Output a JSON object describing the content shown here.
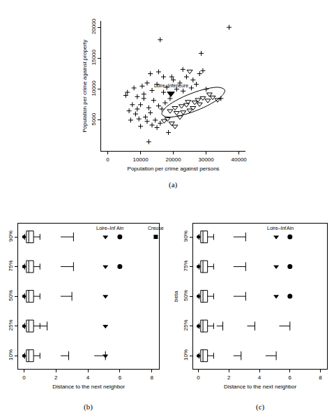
{
  "chart_data": [
    {
      "type": "scatter",
      "caption": "(a)",
      "x_label": "Population per crime against persons",
      "y_label": "Population per crime against property",
      "xlim": [
        -2000,
        42000
      ],
      "xticks": [
        0,
        10000,
        20000,
        30000,
        40000
      ],
      "ylim": [
        0,
        21000
      ],
      "yticks": [
        5000,
        10000,
        15000,
        20000
      ],
      "series": [
        {
          "type": "scatter",
          "marker": "cross",
          "color": "#000000",
          "x": [
            37000,
            16000,
            28500,
            22900,
            15500,
            28000,
            6000,
            5500,
            8000,
            10500,
            12000,
            13500,
            15000,
            17000,
            18000,
            19500,
            21000,
            23000,
            25500,
            27000,
            30000,
            34500,
            9000,
            8500,
            10000,
            11000,
            12500,
            13000,
            14000,
            15500,
            16500,
            17500,
            7000,
            6500,
            9500,
            11500,
            12000,
            13500,
            14500,
            15000,
            16000,
            18500,
            12500,
            10000,
            7500,
            19000,
            20000,
            22000,
            24000,
            26000,
            29000,
            11000,
            13000,
            9000,
            17000
          ],
          "y": [
            20000,
            18000,
            15800,
            13200,
            12800,
            12500,
            9500,
            9000,
            10200,
            10500,
            11000,
            9800,
            10800,
            9500,
            10300,
            12000,
            10000,
            9700,
            10200,
            10800,
            10000,
            8500,
            6800,
            6000,
            7500,
            8500,
            7000,
            6200,
            8200,
            7300,
            6800,
            7800,
            5000,
            6500,
            5200,
            5500,
            4800,
            4200,
            5000,
            3800,
            4500,
            3000,
            1500,
            4000,
            7500,
            8500,
            11500,
            11000,
            12000,
            11500,
            13000,
            9200,
            12500,
            8800,
            12000
          ]
        },
        {
          "type": "scatter",
          "marker": "triangle-down-open",
          "color": "#000000",
          "x": [
            25000,
            17200,
            19500,
            20500,
            22500,
            24000,
            21000,
            23000,
            24500,
            26500,
            27500,
            29000,
            30500,
            32000,
            33500,
            28000,
            26000,
            25000,
            22000,
            18200,
            20500,
            31000,
            19000
          ],
          "y": [
            12900,
            4900,
            4500,
            7000,
            7300,
            7500,
            6200,
            6300,
            8000,
            7900,
            8300,
            8600,
            8200,
            8700,
            8300,
            7600,
            7000,
            6600,
            5500,
            5200,
            4000,
            9200,
            6500
          ]
        },
        {
          "type": "line",
          "line_style": "solid",
          "color": "#000000",
          "x": [
            35700,
            34064,
            30294,
            25400,
            20694,
            17436,
            16500,
            18136,
            21906,
            26800,
            31506,
            34764,
            35700
          ],
          "y": [
            9850,
            10289,
            10087,
            9300,
            8137,
            6911,
            5950,
            5511,
            5713,
            6500,
            7663,
            8889,
            9850
          ]
        },
        {
          "type": "scatter",
          "marker": "triangle-down",
          "color": "#000000",
          "name": "Loire–Inferieure",
          "x": [
            19250
          ],
          "y": [
            9300
          ]
        }
      ]
    },
    {
      "type": "box",
      "caption": "(b)",
      "orientation": "horizontal",
      "x_label": "Distance to the next neighbor",
      "categories": [
        "10%",
        "25%",
        "50%",
        "75%",
        "90%"
      ],
      "xlim": [
        -0.35,
        8.45
      ],
      "xticks": [
        0,
        2,
        4,
        6,
        8
      ],
      "lower_whisker": [
        0.05,
        0.05,
        0.05,
        0.05,
        0.05
      ],
      "q1": [
        0.15,
        0.15,
        0.15,
        0.15,
        0.15
      ],
      "median": [
        0.3,
        0.3,
        0.3,
        0.3,
        0.3
      ],
      "q3": [
        0.6,
        0.6,
        0.6,
        0.6,
        0.6
      ],
      "upper_whisker": [
        1.0,
        1.0,
        1.0,
        1.0,
        1.0
      ],
      "min_point": [
        0,
        0,
        0,
        0,
        0
      ],
      "intervals": [
        [
          [
            2.3,
            2.8
          ],
          [
            4.4,
            5.1
          ]
        ],
        [
          [
            1.0,
            1.45
          ]
        ],
        [
          [
            2.3,
            3.0
          ]
        ],
        [
          [
            2.3,
            3.1
          ]
        ],
        [
          [
            2.3,
            3.1
          ]
        ]
      ],
      "points": [
        {
          "name": "Loire–Inf",
          "marker": "triangle-down",
          "values": [
            5.1,
            5.1,
            5.1,
            5.1,
            5.1
          ]
        },
        {
          "name": "Ain",
          "marker": "circle",
          "values": [
            null,
            null,
            null,
            6.0,
            6.0
          ]
        },
        {
          "name": "Creuse",
          "marker": "square",
          "values": [
            null,
            null,
            null,
            null,
            8.25
          ]
        }
      ]
    },
    {
      "type": "box",
      "caption": "(c)",
      "orientation": "horizontal",
      "x_label": "Distance to the next neighbor",
      "y_label": "beta",
      "categories": [
        "10%",
        "25%",
        "50%",
        "75%",
        "90%"
      ],
      "xlim": [
        -0.35,
        8.45
      ],
      "xticks": [
        0,
        2,
        4,
        6,
        8
      ],
      "lower_whisker": [
        0.05,
        0.05,
        0.05,
        0.05,
        0.05
      ],
      "q1": [
        0.15,
        0.15,
        0.15,
        0.15,
        0.15
      ],
      "median": [
        0.3,
        0.3,
        0.3,
        0.3,
        0.3
      ],
      "q3": [
        0.6,
        0.6,
        0.6,
        0.6,
        0.6
      ],
      "upper_whisker": [
        1.0,
        1.0,
        1.0,
        1.0,
        1.0
      ],
      "min_point": [
        0,
        0,
        0,
        0,
        0
      ],
      "intervals": [
        [
          [
            2.3,
            2.8
          ],
          [
            4.4,
            5.1
          ]
        ],
        [
          [
            1.2,
            1.6
          ],
          [
            3.2,
            3.7
          ],
          [
            5.3,
            6.0
          ]
        ],
        [
          [
            2.3,
            3.1
          ]
        ],
        [
          [
            2.3,
            3.1
          ]
        ],
        [
          [
            2.3,
            3.1
          ]
        ]
      ],
      "points": [
        {
          "name": "Loire–Inf",
          "marker": "triangle-down",
          "values": [
            null,
            null,
            5.1,
            5.1,
            5.1
          ]
        },
        {
          "name": "Ain",
          "marker": "circle",
          "values": [
            null,
            null,
            6.0,
            6.0,
            6.0
          ]
        }
      ]
    }
  ]
}
